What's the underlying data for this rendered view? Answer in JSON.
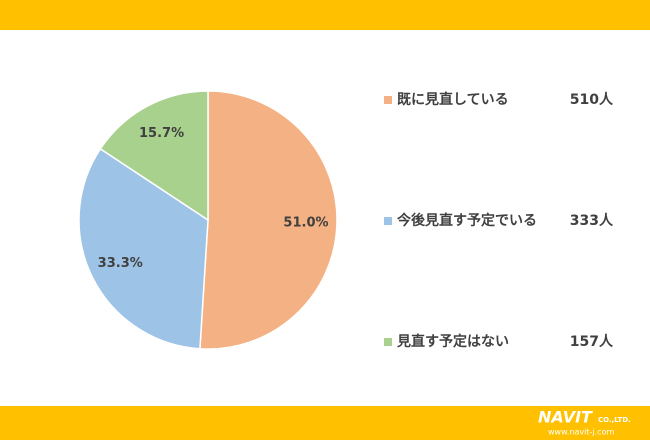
{
  "chart_data": {
    "type": "pie",
    "categories": [
      "既に見直している",
      "今後見直す予定でいる",
      "見直す予定はない"
    ],
    "values": [
      51.0,
      33.3,
      15.7
    ],
    "value_labels": [
      "51.0%",
      "33.3%",
      "15.7%"
    ],
    "counts": [
      510,
      333,
      157
    ],
    "count_labels": [
      "510人",
      "333人",
      "157人"
    ],
    "colors": [
      "#f4b183",
      "#9dc3e6",
      "#a9d18e"
    ]
  },
  "logo": {
    "name": "NAVIT",
    "suffix": "CO.,LTD.",
    "url": "www.navit-j.com"
  }
}
